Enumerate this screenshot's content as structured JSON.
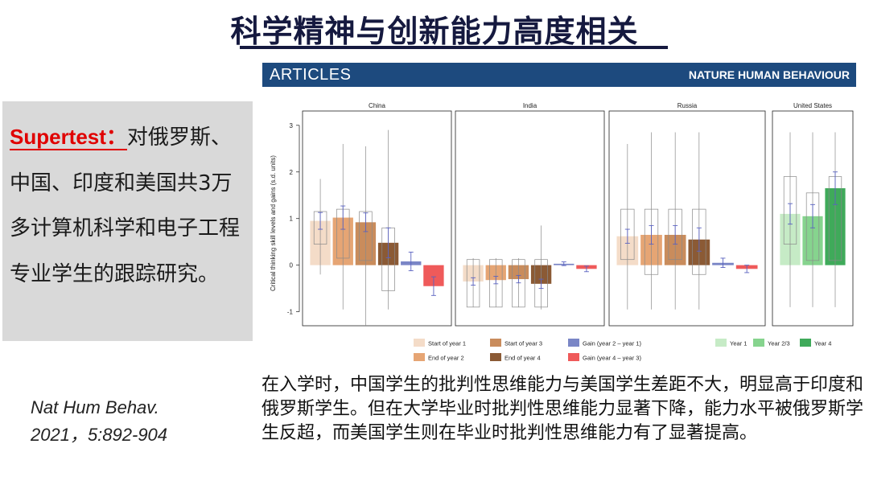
{
  "slide": {
    "title": "科学精神与创新能力高度相关",
    "left_highlight": "Supertest：",
    "left_body": "对俄罗斯、中国、印度和美国共3万多计算机科学和电子工程专业学生的跟踪研究。",
    "citation_line1": "Nat Hum Behav.",
    "citation_line2": "2021，5:892-904",
    "bottom_text": "在入学时，中国学生的批判性思维能力与美国学生差距不大，明显高于印度和俄罗斯学生。但在大学毕业时批判性思维能力显著下降，能力水平被俄罗斯学生反超，而美国学生则在毕业时批判性思维能力有了显著提高。"
  },
  "journal_header": {
    "left": "ARTICLES",
    "right": "NATURE HUMAN BEHAVIOUR"
  },
  "colors": {
    "title": "#15193f",
    "header_bar": "#1d4a7e",
    "highlight": "#e00000",
    "start_year1": "#f4dcc8",
    "end_year2": "#e6a574",
    "start_year3": "#c98c5c",
    "end_year4": "#8b5a35",
    "gain_2_1": "#7a86c6",
    "gain_4_3": "#ef5a5a",
    "us_year1": "#c6ebc6",
    "us_year23": "#86d48e",
    "us_year4": "#3faa5a",
    "error_bar": "#5a62c0"
  },
  "chart_data": {
    "type": "bar",
    "ylabel": "Critical thinking skill levels and gains (s.d. units)",
    "ylim": [
      -1.3,
      3.1
    ],
    "yticks": [
      -1,
      0,
      1,
      2,
      3
    ],
    "panels": [
      {
        "name": "China",
        "bars": [
          {
            "series": "Start of year 1",
            "value": 0.95,
            "err": 0.18,
            "box_low": 0.45,
            "box_high": 1.15,
            "whisker_low": -0.2,
            "whisker_high": 1.85
          },
          {
            "series": "End of year 2",
            "value": 1.02,
            "err": 0.25,
            "box_low": 0.15,
            "box_high": 1.2,
            "whisker_low": -0.95,
            "whisker_high": 2.6
          },
          {
            "series": "Start of year 3",
            "value": 0.92,
            "err": 0.2,
            "box_low": 0.1,
            "box_high": 1.15,
            "whisker_low": -1.3,
            "whisker_high": 2.55
          },
          {
            "series": "End of year 4",
            "value": 0.48,
            "err": 0.32,
            "box_low": -0.55,
            "box_high": 0.8,
            "whisker_low": -0.95,
            "whisker_high": 2.9
          },
          {
            "series": "Gain (year 2 – year 1)",
            "value": 0.08,
            "err": 0.2
          },
          {
            "series": "Gain (year 4 – year 3)",
            "value": -0.45,
            "err": 0.2
          }
        ]
      },
      {
        "name": "India",
        "bars": [
          {
            "series": "Start of year 1",
            "value": -0.35,
            "err": 0.08,
            "box_low": -0.9,
            "box_high": 0.12,
            "whisker_low": -0.9,
            "whisker_high": 0.15
          },
          {
            "series": "End of year 2",
            "value": -0.32,
            "err": 0.08,
            "box_low": -0.9,
            "box_high": 0.12,
            "whisker_low": -0.9,
            "whisker_high": 0.15
          },
          {
            "series": "Start of year 3",
            "value": -0.3,
            "err": 0.08,
            "box_low": -0.9,
            "box_high": 0.12,
            "whisker_low": -0.9,
            "whisker_high": 0.15
          },
          {
            "series": "End of year 4",
            "value": -0.4,
            "err": 0.1,
            "box_low": -0.9,
            "box_high": 0.12,
            "whisker_low": -0.95,
            "whisker_high": 0.85
          },
          {
            "series": "Gain (year 2 – year 1)",
            "value": 0.03,
            "err": 0.04
          },
          {
            "series": "Gain (year 4 – year 3)",
            "value": -0.08,
            "err": 0.06
          }
        ]
      },
      {
        "name": "Russia",
        "bars": [
          {
            "series": "Start of year 1",
            "value": 0.62,
            "err": 0.15,
            "box_low": 0.12,
            "box_high": 1.2,
            "whisker_low": -0.95,
            "whisker_high": 2.6
          },
          {
            "series": "End of year 2",
            "value": 0.65,
            "err": 0.2,
            "box_low": -0.2,
            "box_high": 1.2,
            "whisker_low": -0.95,
            "whisker_high": 2.85
          },
          {
            "series": "Start of year 3",
            "value": 0.65,
            "err": 0.2,
            "box_low": 0.12,
            "box_high": 1.2,
            "whisker_low": -0.95,
            "whisker_high": 2.85
          },
          {
            "series": "End of year 4",
            "value": 0.55,
            "err": 0.25,
            "box_low": -0.2,
            "box_high": 1.2,
            "whisker_low": -0.95,
            "whisker_high": 2.85
          },
          {
            "series": "Gain (year 2 – year 1)",
            "value": 0.05,
            "err": 0.1
          },
          {
            "series": "Gain (year 4 – year 3)",
            "value": -0.08,
            "err": 0.08
          }
        ]
      },
      {
        "name": "United States",
        "bars": [
          {
            "series": "Year 1",
            "value": 1.1,
            "err": 0.22,
            "box_low": 0.45,
            "box_high": 1.9,
            "whisker_low": -0.9,
            "whisker_high": 2.85
          },
          {
            "series": "Year 2/3",
            "value": 1.05,
            "err": 0.25,
            "box_low": 0.1,
            "box_high": 1.55,
            "whisker_low": -0.9,
            "whisker_high": 2.85
          },
          {
            "series": "Year 4",
            "value": 1.65,
            "err": 0.35,
            "box_low": 0.1,
            "box_high": 1.9,
            "whisker_low": -0.9,
            "whisker_high": 2.85
          }
        ]
      }
    ],
    "legend": [
      {
        "label": "Start of year 1",
        "color": "#f4dcc8"
      },
      {
        "label": "End of year 2",
        "color": "#e6a574"
      },
      {
        "label": "Start of year 3",
        "color": "#c98c5c"
      },
      {
        "label": "End of year 4",
        "color": "#8b5a35"
      },
      {
        "label": "Gain (year 2 – year 1)",
        "color": "#7a86c6"
      },
      {
        "label": "Gain (year 4 – year 3)",
        "color": "#ef5a5a"
      },
      {
        "label": "Year 1",
        "color": "#c6ebc6"
      },
      {
        "label": "Year 2/3",
        "color": "#86d48e"
      },
      {
        "label": "Year 4",
        "color": "#3faa5a"
      }
    ]
  }
}
